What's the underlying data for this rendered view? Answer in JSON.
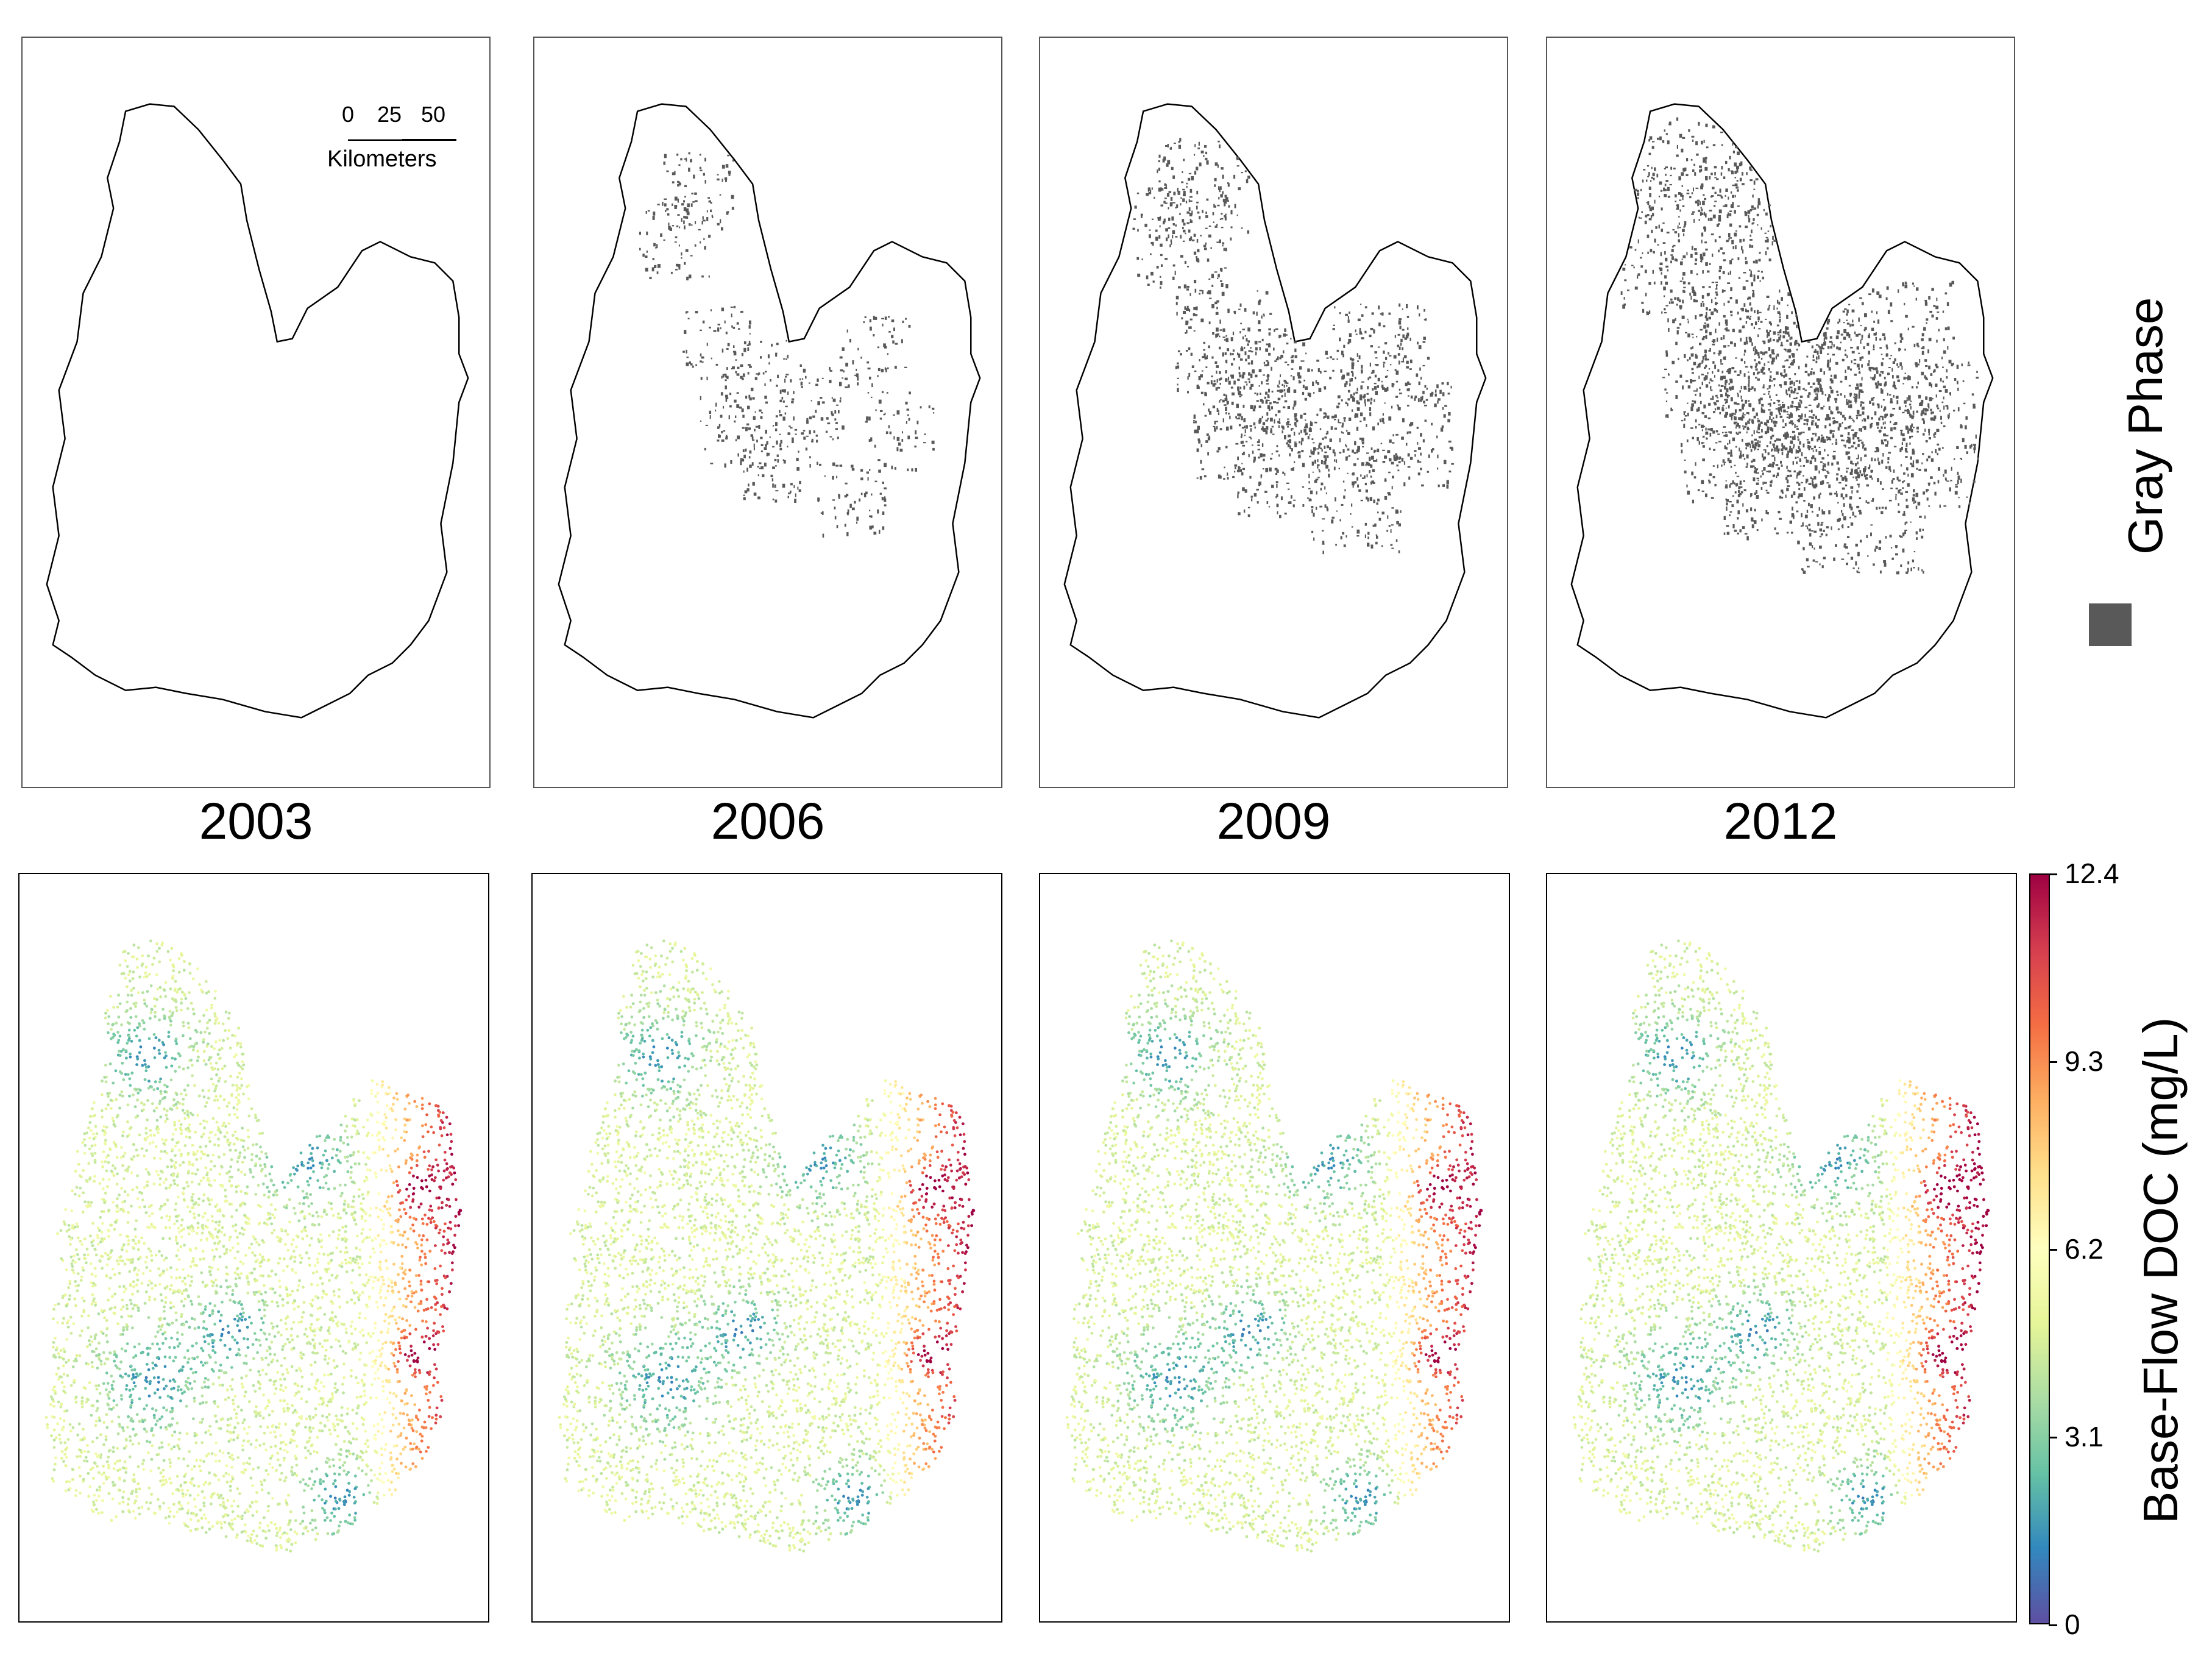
{
  "panels_top": [
    {
      "year": "2003",
      "gray_density": 0.0
    },
    {
      "year": "2006",
      "gray_density": 0.25
    },
    {
      "year": "2009",
      "gray_density": 0.55
    },
    {
      "year": "2012",
      "gray_density": 1.0
    }
  ],
  "scale_bar": {
    "tick_0": "0",
    "tick_25": "25",
    "tick_50": "50",
    "unit": "Kilometers"
  },
  "legend": {
    "label": "Gray Phase",
    "swatch_color": "#595959"
  },
  "colorbar": {
    "title": "Base-Flow DOC (mg/L)",
    "min": 0,
    "max": 12.4,
    "ticks": [
      "0",
      "3.1",
      "6.2",
      "9.3",
      "12.4"
    ],
    "colors": [
      "#5e4fa2",
      "#3288bd",
      "#66c2a5",
      "#abdda4",
      "#e6f598",
      "#ffffbf",
      "#fee08b",
      "#fdae61",
      "#f46d43",
      "#d53e4f",
      "#9e0142"
    ]
  }
}
